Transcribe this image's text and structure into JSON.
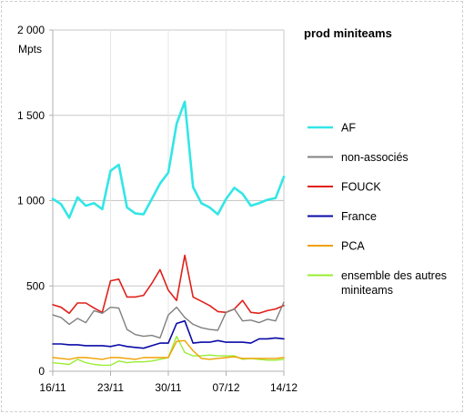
{
  "chart_data": {
    "type": "line",
    "title": "prod miniteams",
    "ylabel": "Mpts",
    "ylim": [
      0,
      2000
    ],
    "yticks": [
      0,
      500,
      1000,
      1500,
      2000
    ],
    "ytick_labels": [
      "0",
      "500",
      "1 000",
      "1 500",
      "2 000"
    ],
    "xtick_labels": [
      "16/11",
      "23/11",
      "30/11",
      "07/12",
      "14/12"
    ],
    "grid": "horizontal",
    "legend_position": "right",
    "x": [
      "16/11",
      "17/11",
      "18/11",
      "19/11",
      "20/11",
      "21/11",
      "22/11",
      "23/11",
      "24/11",
      "25/11",
      "26/11",
      "27/11",
      "28/11",
      "29/11",
      "30/11",
      "01/12",
      "02/12",
      "03/12",
      "04/12",
      "05/12",
      "06/12",
      "07/12",
      "08/12",
      "09/12",
      "10/12",
      "11/12",
      "12/12",
      "13/12",
      "14/12"
    ],
    "series": [
      {
        "name": "AF",
        "color": "#33e6e6",
        "width": 2.6,
        "values": [
          1010,
          980,
          900,
          1020,
          970,
          985,
          950,
          1175,
          1210,
          960,
          925,
          920,
          1010,
          1100,
          1165,
          1450,
          1580,
          1080,
          985,
          960,
          920,
          1010,
          1075,
          1040,
          970,
          985,
          1005,
          1015,
          1140
        ]
      },
      {
        "name": "non-associés",
        "color": "#808080",
        "width": 1.4,
        "values": [
          330,
          315,
          275,
          310,
          285,
          355,
          340,
          375,
          370,
          245,
          215,
          205,
          210,
          195,
          330,
          375,
          315,
          275,
          255,
          245,
          240,
          345,
          365,
          295,
          300,
          285,
          305,
          295,
          405
        ]
      },
      {
        "name": "FOUCK",
        "color": "#e0201a",
        "width": 1.6,
        "values": [
          390,
          375,
          340,
          400,
          400,
          370,
          345,
          530,
          540,
          435,
          435,
          445,
          515,
          595,
          475,
          415,
          680,
          435,
          410,
          385,
          350,
          345,
          365,
          415,
          345,
          340,
          355,
          365,
          385
        ]
      },
      {
        "name": "France",
        "color": "#0a0aa8",
        "width": 1.6,
        "values": [
          160,
          160,
          155,
          155,
          150,
          150,
          150,
          145,
          155,
          145,
          140,
          135,
          150,
          165,
          165,
          280,
          295,
          165,
          170,
          170,
          180,
          170,
          170,
          170,
          165,
          190,
          190,
          195,
          190
        ]
      },
      {
        "name": "PCA",
        "color": "#f0a000",
        "width": 1.4,
        "values": [
          80,
          75,
          70,
          80,
          80,
          75,
          70,
          80,
          80,
          75,
          70,
          80,
          80,
          80,
          80,
          175,
          180,
          120,
          75,
          70,
          75,
          80,
          85,
          75,
          75,
          75,
          75,
          75,
          80
        ]
      },
      {
        "name": "ensemble des autres miniteams",
        "color": "#99ee33",
        "width": 1.4,
        "values": [
          50,
          45,
          40,
          70,
          50,
          40,
          35,
          35,
          60,
          50,
          55,
          55,
          60,
          70,
          80,
          205,
          110,
          90,
          90,
          95,
          90,
          90,
          90,
          70,
          75,
          70,
          65,
          65,
          70
        ]
      }
    ]
  }
}
